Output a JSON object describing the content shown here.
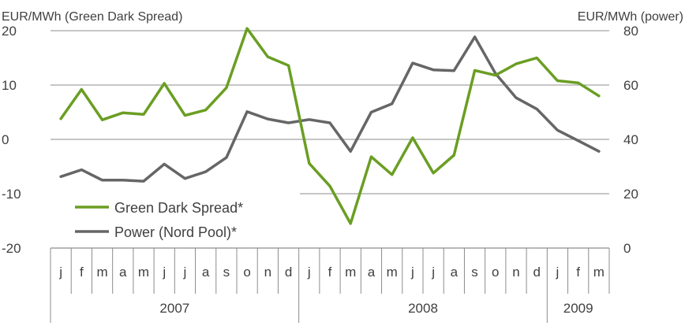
{
  "chart_data": {
    "type": "line",
    "left_axis": {
      "title": "EUR/MWh (Green Dark Spread)",
      "ylim": [
        -20,
        20
      ],
      "ticks": [
        20,
        10,
        0,
        -10,
        -20
      ]
    },
    "right_axis": {
      "title": "EUR/MWh (power)",
      "ylim": [
        0,
        80
      ],
      "ticks": [
        80,
        60,
        40,
        20,
        0
      ]
    },
    "grid": true,
    "legend_position": "lower-left",
    "months": [
      "j",
      "f",
      "m",
      "a",
      "m",
      "j",
      "j",
      "a",
      "s",
      "o",
      "n",
      "d",
      "j",
      "f",
      "m",
      "a",
      "m",
      "j",
      "j",
      "a",
      "s",
      "o",
      "n",
      "d",
      "j",
      "f",
      "m"
    ],
    "years": [
      {
        "label": "2007",
        "months": 12
      },
      {
        "label": "2008",
        "months": 12
      },
      {
        "label": "2009",
        "months": 3
      }
    ],
    "series": [
      {
        "name": "Green Dark Spread*",
        "axis": "left",
        "color": "#6a9e23",
        "values": [
          3.8,
          9.2,
          3.6,
          4.9,
          4.6,
          10.3,
          4.4,
          5.4,
          9.5,
          20.4,
          15.2,
          13.6,
          -4.4,
          -8.6,
          -15.5,
          -3.2,
          -6.5,
          0.3,
          -6.2,
          -2.9,
          12.7,
          11.8,
          13.9,
          15.0,
          10.8,
          10.4,
          8.0
        ]
      },
      {
        "name": "Power (Nord Pool)*",
        "axis": "right",
        "color": "#666666",
        "values": [
          26.3,
          28.8,
          25.0,
          25.0,
          24.6,
          30.9,
          25.6,
          28.1,
          33.3,
          50.2,
          47.5,
          46.1,
          47.3,
          46.1,
          35.6,
          50.0,
          53.1,
          68.1,
          65.6,
          65.3,
          77.7,
          64.3,
          55.3,
          51.2,
          43.4,
          39.5,
          35.6
        ]
      }
    ]
  }
}
